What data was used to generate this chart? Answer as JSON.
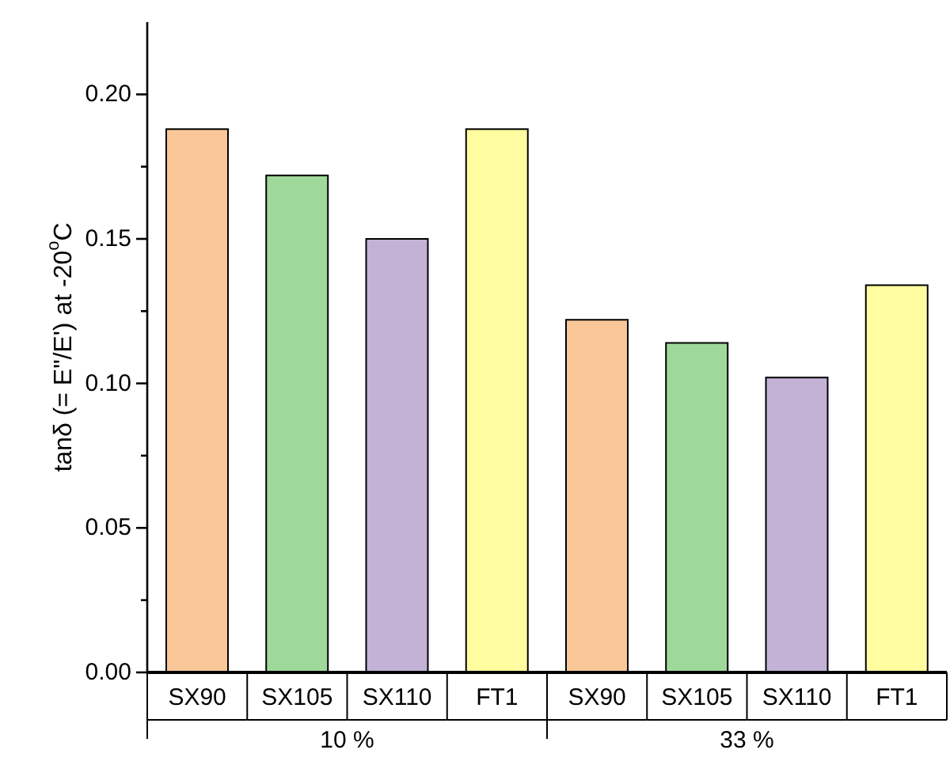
{
  "chart_data": {
    "type": "bar",
    "ylabel": "tanδ (= E\"/E') at -20$^{o}$C",
    "categories": [
      "SX90",
      "SX105",
      "SX110",
      "FT1",
      "SX90",
      "SX105",
      "SX110",
      "FT1"
    ],
    "values": [
      0.188,
      0.172,
      0.15,
      0.188,
      0.122,
      0.114,
      0.102,
      0.134
    ],
    "colors": [
      "#fac898",
      "#9fd89b",
      "#c3b2d6",
      "#fffd9f",
      "#fac898",
      "#9fd89b",
      "#c3b2d6",
      "#fffd9f"
    ],
    "ylim": [
      0,
      0.225
    ],
    "yticks": [
      {
        "value": 0,
        "label": "0.00"
      },
      {
        "value": 0.025,
        "label": null
      },
      {
        "value": 0.05,
        "label": "0.05"
      },
      {
        "value": 0.075,
        "label": null
      },
      {
        "value": 0.1,
        "label": "0.10"
      },
      {
        "value": 0.125,
        "label": null
      },
      {
        "value": 0.15,
        "label": "0.15"
      },
      {
        "value": 0.175,
        "label": null
      },
      {
        "value": 0.2,
        "label": "0.20"
      }
    ],
    "annotations": [
      "10 %",
      "33 %"
    ],
    "grid": false,
    "legend": false
  }
}
